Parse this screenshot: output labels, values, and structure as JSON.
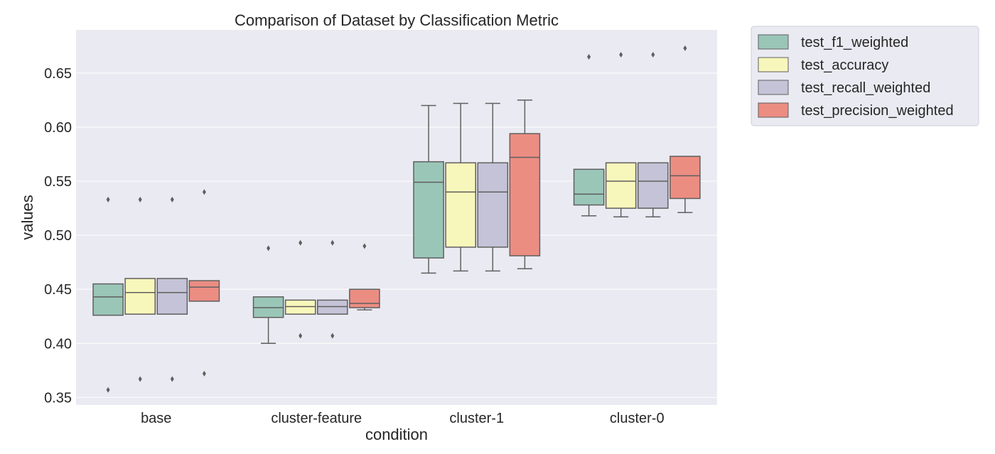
{
  "chart_data": {
    "type": "box",
    "title": "Comparison of Dataset by Classification Metric",
    "xlabel": "condition",
    "ylabel": "values",
    "ylim": [
      0.343,
      0.69
    ],
    "yticks": [
      0.35,
      0.4,
      0.45,
      0.5,
      0.55,
      0.6,
      0.65
    ],
    "ytick_labels": [
      "0.35",
      "0.40",
      "0.45",
      "0.50",
      "0.55",
      "0.60",
      "0.65"
    ],
    "categories": [
      "base",
      "cluster-feature",
      "cluster-1",
      "cluster-0"
    ],
    "grid": true,
    "legend_position": "outside-top-right",
    "series": [
      {
        "name": "test_f1_weighted",
        "color": "#9ac6b8",
        "boxes": [
          {
            "whisker_low": 0.426,
            "q1": 0.426,
            "median": 0.443,
            "q3": 0.455,
            "whisker_high": 0.455,
            "outliers": [
              0.533,
              0.357
            ]
          },
          {
            "whisker_low": 0.4,
            "q1": 0.424,
            "median": 0.433,
            "q3": 0.443,
            "whisker_high": 0.443,
            "outliers": [
              0.488
            ]
          },
          {
            "whisker_low": 0.465,
            "q1": 0.479,
            "median": 0.549,
            "q3": 0.568,
            "whisker_high": 0.62,
            "outliers": []
          },
          {
            "whisker_low": 0.518,
            "q1": 0.528,
            "median": 0.538,
            "q3": 0.561,
            "whisker_high": 0.561,
            "outliers": [
              0.665
            ]
          }
        ]
      },
      {
        "name": "test_accuracy",
        "color": "#f8f7bb",
        "boxes": [
          {
            "whisker_low": 0.427,
            "q1": 0.427,
            "median": 0.447,
            "q3": 0.46,
            "whisker_high": 0.46,
            "outliers": [
              0.533,
              0.367
            ]
          },
          {
            "whisker_low": 0.427,
            "q1": 0.427,
            "median": 0.434,
            "q3": 0.44,
            "whisker_high": 0.44,
            "outliers": [
              0.493,
              0.407
            ]
          },
          {
            "whisker_low": 0.467,
            "q1": 0.489,
            "median": 0.54,
            "q3": 0.567,
            "whisker_high": 0.622,
            "outliers": []
          },
          {
            "whisker_low": 0.517,
            "q1": 0.525,
            "median": 0.55,
            "q3": 0.567,
            "whisker_high": 0.567,
            "outliers": [
              0.667
            ]
          }
        ]
      },
      {
        "name": "test_recall_weighted",
        "color": "#c5c3d7",
        "boxes": [
          {
            "whisker_low": 0.427,
            "q1": 0.427,
            "median": 0.447,
            "q3": 0.46,
            "whisker_high": 0.46,
            "outliers": [
              0.533,
              0.367
            ]
          },
          {
            "whisker_low": 0.427,
            "q1": 0.427,
            "median": 0.434,
            "q3": 0.44,
            "whisker_high": 0.44,
            "outliers": [
              0.493,
              0.407
            ]
          },
          {
            "whisker_low": 0.467,
            "q1": 0.489,
            "median": 0.54,
            "q3": 0.567,
            "whisker_high": 0.622,
            "outliers": []
          },
          {
            "whisker_low": 0.517,
            "q1": 0.525,
            "median": 0.55,
            "q3": 0.567,
            "whisker_high": 0.567,
            "outliers": [
              0.667
            ]
          }
        ]
      },
      {
        "name": "test_precision_weighted",
        "color": "#ec8d82",
        "boxes": [
          {
            "whisker_low": 0.439,
            "q1": 0.439,
            "median": 0.452,
            "q3": 0.458,
            "whisker_high": 0.458,
            "outliers": [
              0.54,
              0.372
            ]
          },
          {
            "whisker_low": 0.431,
            "q1": 0.433,
            "median": 0.437,
            "q3": 0.45,
            "whisker_high": 0.45,
            "outliers": [
              0.49
            ]
          },
          {
            "whisker_low": 0.469,
            "q1": 0.481,
            "median": 0.572,
            "q3": 0.594,
            "whisker_high": 0.625,
            "outliers": []
          },
          {
            "whisker_low": 0.521,
            "q1": 0.534,
            "median": 0.555,
            "q3": 0.573,
            "whisker_high": 0.573,
            "outliers": [
              0.673
            ]
          }
        ]
      }
    ]
  }
}
